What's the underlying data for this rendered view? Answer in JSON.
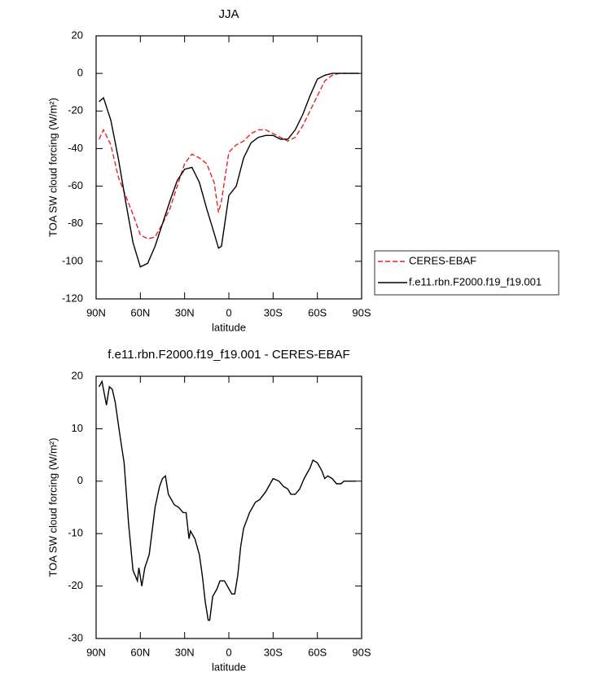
{
  "chart_data": [
    {
      "type": "line",
      "title": "JJA",
      "xlabel": "latitude",
      "ylabel": "TOA SW cloud forcing (W/m²)",
      "x": [
        88,
        85,
        80,
        75,
        70,
        65,
        60,
        55,
        50,
        45,
        40,
        35,
        30,
        25,
        20,
        15,
        10,
        7,
        5,
        0,
        -5,
        -10,
        -15,
        -20,
        -25,
        -30,
        -35,
        -40,
        -45,
        -50,
        -55,
        -60,
        -65,
        -70,
        -75,
        -80,
        -85,
        -88
      ],
      "series": [
        {
          "name": "CERES-EBAF",
          "color": "#e8221e",
          "dashed": true,
          "values": [
            -35,
            -30,
            -38,
            -55,
            -65,
            -75,
            -86,
            -88,
            -87,
            -80,
            -72,
            -60,
            -48,
            -43,
            -45,
            -48,
            -58,
            -74,
            -68,
            -42,
            -38,
            -36,
            -32,
            -30,
            -30,
            -32,
            -34,
            -36,
            -34,
            -28,
            -20,
            -12,
            -4,
            -1,
            0,
            0,
            0,
            0
          ]
        },
        {
          "name": "f.e11.rbn.F2000.f19_f19.001",
          "color": "#000000",
          "dashed": false,
          "values": [
            -15,
            -13,
            -25,
            -45,
            -68,
            -90,
            -103,
            -101,
            -92,
            -80,
            -68,
            -57,
            -51,
            -50,
            -58,
            -72,
            -85,
            -93,
            -92,
            -65,
            -60,
            -45,
            -37,
            -34,
            -33,
            -33,
            -35,
            -35,
            -30,
            -22,
            -12,
            -3,
            -1,
            0,
            0,
            0,
            0,
            0
          ]
        }
      ],
      "xlim": [
        90,
        -90
      ],
      "xticks": [
        {
          "value": 90,
          "label": "90N"
        },
        {
          "value": 60,
          "label": "60N"
        },
        {
          "value": 30,
          "label": "30N"
        },
        0,
        {
          "value": -30,
          "label": "30S"
        },
        {
          "value": -60,
          "label": "60S"
        },
        {
          "value": -90,
          "label": "90S"
        }
      ],
      "ylim": [
        -120,
        20
      ],
      "yticks": [
        20,
        0,
        -20,
        -40,
        -60,
        -80,
        -100,
        -120
      ],
      "legend": "right"
    },
    {
      "type": "line",
      "title": "f.e11.rbn.F2000.f19_f19.001 - CERES-EBAF",
      "xlabel": "latitude",
      "ylabel": "TOA SW cloud forcing (W/m²)",
      "x": [
        88,
        86,
        83,
        81,
        79,
        77,
        74,
        71,
        68,
        65,
        62,
        61,
        59,
        57,
        54,
        50,
        47,
        45,
        43,
        41,
        37,
        34,
        31,
        29,
        27,
        26,
        23,
        20,
        18,
        16,
        14,
        13,
        11,
        8,
        6,
        3,
        1,
        -2,
        -4,
        -6,
        -8,
        -10,
        -14,
        -18,
        -21,
        -25,
        -28,
        -30,
        -34,
        -37,
        -40,
        -42,
        -45,
        -48,
        -51,
        -55,
        -57,
        -60,
        -63,
        -65,
        -67,
        -70,
        -73,
        -76,
        -78,
        -82,
        -86
      ],
      "series": [
        {
          "name": "f.e11.rbn.F2000.f19_f19.001 - CERES-EBAF",
          "color": "#000000",
          "dashed": false,
          "values": [
            18,
            19,
            14.5,
            18,
            17.5,
            15,
            9,
            3.5,
            -8,
            -17,
            -19,
            -16.5,
            -20,
            -16.5,
            -14,
            -5,
            -1,
            0.5,
            1,
            -2.5,
            -4.5,
            -5,
            -6,
            -6,
            -11,
            -9.5,
            -11,
            -14,
            -18,
            -23,
            -26.5,
            -26.5,
            -22,
            -20.5,
            -19,
            -19,
            -20,
            -21.5,
            -21.5,
            -18,
            -12.5,
            -9,
            -6,
            -4,
            -3.5,
            -2,
            -0.5,
            0.5,
            0,
            -1,
            -1.5,
            -2.5,
            -2.5,
            -1.5,
            0.5,
            2.5,
            4,
            3.5,
            2,
            0.5,
            1,
            0.5,
            -0.5,
            -0.5,
            0,
            0,
            0
          ]
        }
      ],
      "xlim": [
        90,
        -90
      ],
      "xticks": [
        {
          "value": 90,
          "label": "90N"
        },
        {
          "value": 60,
          "label": "60N"
        },
        {
          "value": 30,
          "label": "30N"
        },
        0,
        {
          "value": -30,
          "label": "30S"
        },
        {
          "value": -60,
          "label": "60S"
        },
        {
          "value": -90,
          "label": "90S"
        }
      ],
      "ylim": [
        -30,
        20
      ],
      "yticks": [
        20,
        10,
        0,
        -10,
        -20,
        -30
      ]
    }
  ]
}
